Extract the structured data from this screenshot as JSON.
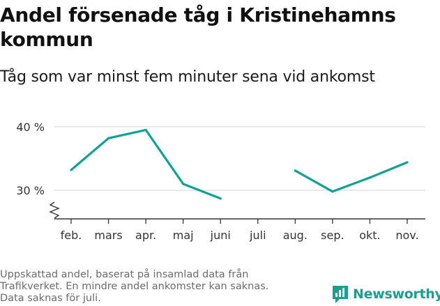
{
  "title_lines": [
    "Andel försenade tåg i Kristinehamns",
    "kommun"
  ],
  "subtitle": "Tåg som var minst fem minuter sena vid ankomst",
  "footnote_lines": [
    "Uppskattad andel, baserat på insamlad data från",
    "Trafikverket. En mindre andel ankomster kan saknas.",
    "Data saknas för juli."
  ],
  "brand": {
    "name": "Newsworthy",
    "icon": "newsworthy-logo-icon",
    "color": "#1a9e8f"
  },
  "chart_data": {
    "type": "line",
    "categories": [
      "feb.",
      "mars",
      "apr.",
      "maj",
      "juni",
      "juli",
      "aug.",
      "sep.",
      "okt.",
      "nov."
    ],
    "series": [
      {
        "values": [
          33.2,
          38.2,
          39.5,
          31.0,
          28.7,
          null,
          33.1,
          29.8,
          32.0,
          34.4
        ],
        "color": "#0fa195"
      }
    ],
    "yticks": [
      30,
      40
    ],
    "ytick_labels": [
      "30 %",
      "40 %"
    ],
    "ylim": [
      25.5,
      41.3
    ],
    "axis_break": true,
    "grid": true,
    "ylabel": "",
    "xlabel": ""
  }
}
